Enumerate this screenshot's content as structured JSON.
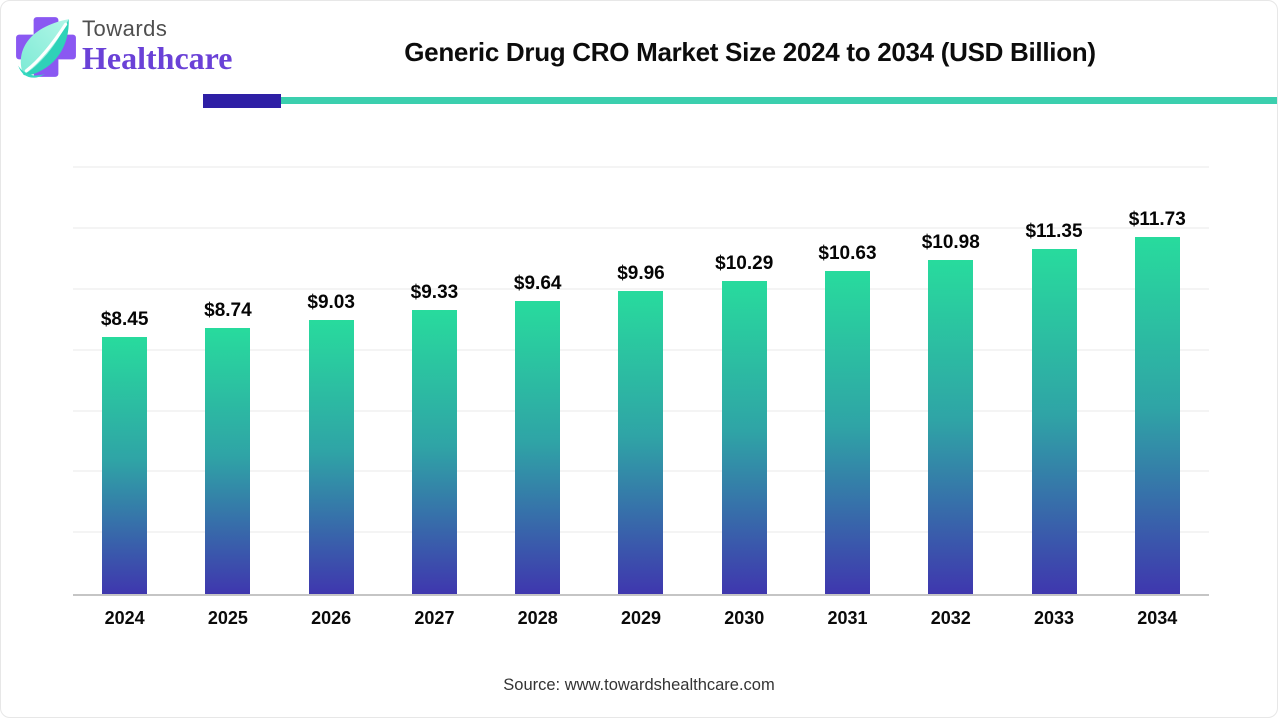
{
  "header": {
    "brand_top": "Towards",
    "brand_bottom": "Healthcare",
    "title": "Generic Drug CRO Market Size 2024 to 2034 (USD Billion)",
    "accent_purple_color": "#2e1fa5",
    "accent_teal_color": "#3bcfae"
  },
  "chart_data": {
    "type": "bar",
    "title": "Generic Drug CRO Market Size 2024 to 2034 (USD Billion)",
    "categories": [
      "2024",
      "2025",
      "2026",
      "2027",
      "2028",
      "2029",
      "2030",
      "2031",
      "2032",
      "2033",
      "2034"
    ],
    "values": [
      8.45,
      8.74,
      9.03,
      9.33,
      9.64,
      9.96,
      10.29,
      10.63,
      10.98,
      11.35,
      11.73
    ],
    "value_labels": [
      "$8.45",
      "$8.74",
      "$9.03",
      "$9.33",
      "$9.64",
      "$9.96",
      "$10.29",
      "$10.63",
      "$10.98",
      "$11.35",
      "$11.73"
    ],
    "unit": "USD Billion",
    "xlabel": "",
    "ylabel": "",
    "ylim": [
      0,
      14.5
    ],
    "gridline_step": 2,
    "grid": "horizontal-faint",
    "legend": "none",
    "bar_gradient_top": "#28db9d",
    "bar_gradient_bottom": "#3f37ae"
  },
  "footer": {
    "source": "Source: www.towardshealthcare.com"
  }
}
